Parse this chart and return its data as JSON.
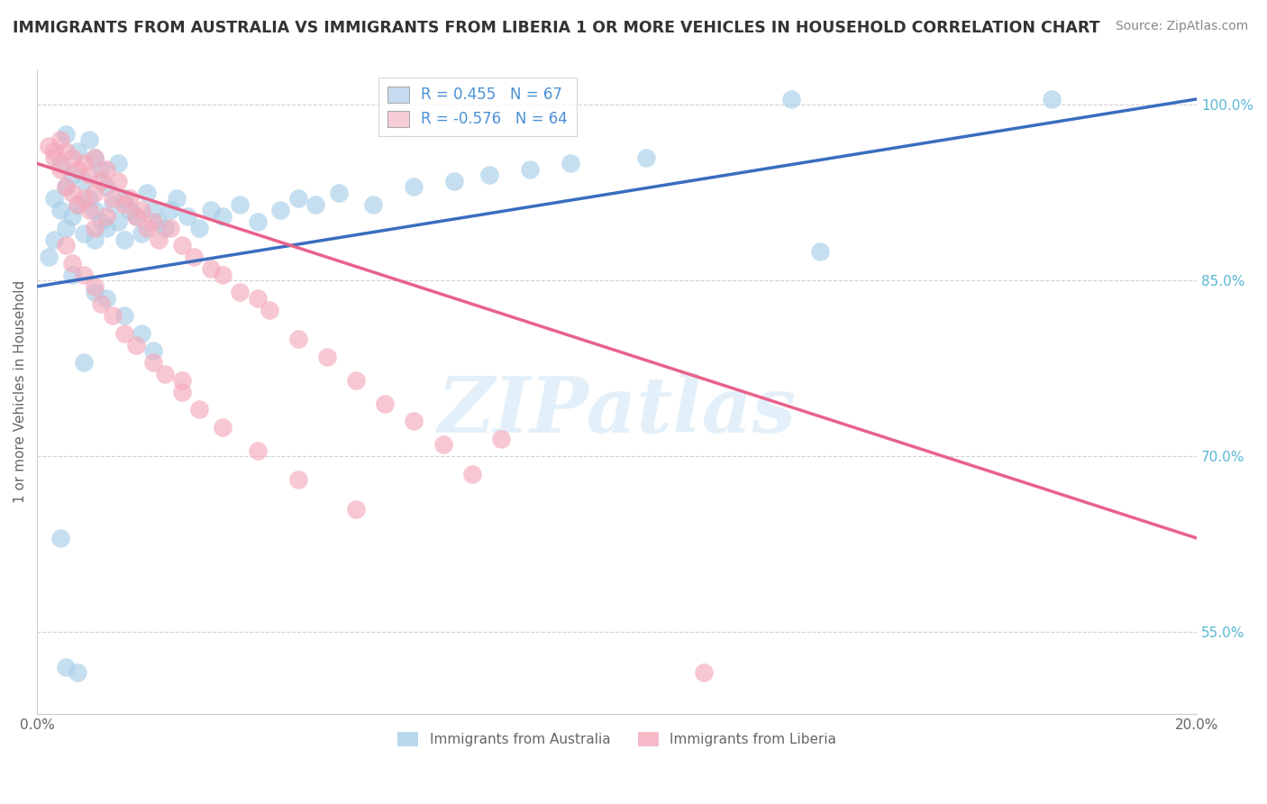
{
  "title": "IMMIGRANTS FROM AUSTRALIA VS IMMIGRANTS FROM LIBERIA 1 OR MORE VEHICLES IN HOUSEHOLD CORRELATION CHART",
  "source": "Source: ZipAtlas.com",
  "ylabel": "1 or more Vehicles in Household",
  "x_min": 0.0,
  "x_max": 20.0,
  "y_min": 48.0,
  "y_max": 103.0,
  "y_ticks": [
    55.0,
    70.0,
    85.0,
    100.0
  ],
  "y_tick_labels": [
    "55.0%",
    "70.0%",
    "85.0%",
    "100.0%"
  ],
  "australia_color": "#a8cfe8",
  "liberia_color": "#f4a9bb",
  "australia_R": 0.455,
  "australia_N": 67,
  "liberia_R": -0.576,
  "liberia_N": 64,
  "trend_australia_color": "#3a6dbf",
  "trend_liberia_color": "#e8628a",
  "aus_trend_x0": 0.0,
  "aus_trend_y0": 84.5,
  "aus_trend_x1": 20.0,
  "aus_trend_y1": 100.5,
  "lib_trend_x0": 0.0,
  "lib_trend_y0": 95.0,
  "lib_trend_x1": 20.0,
  "lib_trend_y1": 63.0,
  "watermark_text": "ZIPatlas",
  "background_color": "#ffffff",
  "grid_color": "#cccccc",
  "legend_box_color_australia": "#c5dcf0",
  "legend_box_color_liberia": "#f9cdd8",
  "australia_x": [
    0.2,
    0.3,
    0.3,
    0.4,
    0.4,
    0.5,
    0.5,
    0.5,
    0.6,
    0.6,
    0.7,
    0.7,
    0.8,
    0.8,
    0.9,
    0.9,
    1.0,
    1.0,
    1.0,
    1.1,
    1.1,
    1.2,
    1.2,
    1.3,
    1.4,
    1.4,
    1.5,
    1.5,
    1.6,
    1.7,
    1.8,
    1.9,
    2.0,
    2.1,
    2.2,
    2.3,
    2.4,
    2.6,
    2.8,
    3.0,
    3.2,
    3.5,
    3.8,
    4.2,
    4.5,
    4.8,
    5.2,
    5.8,
    6.5,
    7.2,
    7.8,
    8.5,
    9.2,
    10.5,
    0.6,
    0.8,
    1.0,
    1.2,
    1.5,
    1.8,
    2.0,
    0.4,
    0.5,
    0.7,
    13.0,
    17.5,
    13.5
  ],
  "australia_y": [
    87.0,
    88.5,
    92.0,
    91.0,
    95.0,
    89.5,
    93.0,
    97.5,
    90.5,
    94.0,
    91.5,
    96.0,
    89.0,
    93.5,
    92.0,
    97.0,
    88.5,
    91.0,
    95.5,
    90.0,
    94.5,
    89.5,
    93.0,
    91.5,
    90.0,
    95.0,
    88.5,
    92.0,
    91.0,
    90.5,
    89.0,
    92.5,
    91.0,
    90.0,
    89.5,
    91.0,
    92.0,
    90.5,
    89.5,
    91.0,
    90.5,
    91.5,
    90.0,
    91.0,
    92.0,
    91.5,
    92.5,
    91.5,
    93.0,
    93.5,
    94.0,
    94.5,
    95.0,
    95.5,
    85.5,
    78.0,
    84.0,
    83.5,
    82.0,
    80.5,
    79.0,
    63.0,
    52.0,
    51.5,
    100.5,
    100.5,
    87.5
  ],
  "liberia_x": [
    0.2,
    0.3,
    0.4,
    0.4,
    0.5,
    0.5,
    0.6,
    0.6,
    0.7,
    0.7,
    0.8,
    0.8,
    0.9,
    0.9,
    1.0,
    1.0,
    1.0,
    1.1,
    1.2,
    1.2,
    1.3,
    1.4,
    1.5,
    1.6,
    1.7,
    1.8,
    1.9,
    2.0,
    2.1,
    2.3,
    2.5,
    2.7,
    3.0,
    3.2,
    3.5,
    3.8,
    4.0,
    4.5,
    5.0,
    5.5,
    6.0,
    6.5,
    7.0,
    0.5,
    0.6,
    0.8,
    1.0,
    1.1,
    1.3,
    1.5,
    1.7,
    2.0,
    2.2,
    2.5,
    2.8,
    3.2,
    3.8,
    4.5,
    5.5,
    7.5,
    11.5,
    2.5,
    8.0,
    0.3
  ],
  "liberia_y": [
    96.5,
    95.5,
    97.0,
    94.5,
    96.0,
    93.0,
    95.5,
    92.5,
    94.5,
    91.5,
    95.0,
    92.0,
    94.0,
    91.0,
    95.5,
    92.5,
    89.5,
    93.5,
    94.5,
    90.5,
    92.0,
    93.5,
    91.5,
    92.0,
    90.5,
    91.0,
    89.5,
    90.0,
    88.5,
    89.5,
    88.0,
    87.0,
    86.0,
    85.5,
    84.0,
    83.5,
    82.5,
    80.0,
    78.5,
    76.5,
    74.5,
    73.0,
    71.0,
    88.0,
    86.5,
    85.5,
    84.5,
    83.0,
    82.0,
    80.5,
    79.5,
    78.0,
    77.0,
    75.5,
    74.0,
    72.5,
    70.5,
    68.0,
    65.5,
    68.5,
    51.5,
    76.5,
    71.5,
    96.0
  ]
}
